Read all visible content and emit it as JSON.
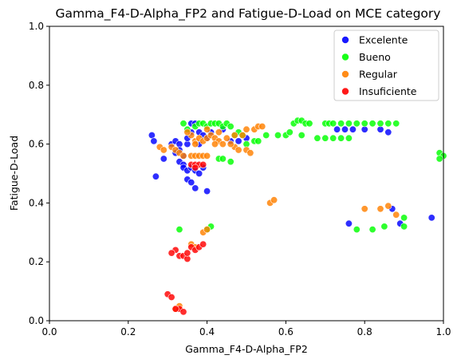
{
  "chart_data": {
    "type": "scatter",
    "title": "Gamma_F4-D-Alpha_FP2 and Fatigue-D-Load on MCE category",
    "xlabel": "Gamma_F4-D-Alpha_FP2",
    "ylabel": "Fatigue-D-Load",
    "xlim": [
      0,
      1
    ],
    "ylim": [
      0,
      1
    ],
    "xticks": [
      "0.0",
      "0.2",
      "0.4",
      "0.6",
      "0.8",
      "1.0"
    ],
    "yticks": [
      "0.0",
      "0.2",
      "0.4",
      "0.6",
      "0.8",
      "1.0"
    ],
    "grid": false,
    "legend_position": "top-right",
    "series": [
      {
        "name": "Excelente",
        "color": "#0000ff",
        "points": [
          [
            0.26,
            0.63
          ],
          [
            0.265,
            0.61
          ],
          [
            0.27,
            0.49
          ],
          [
            0.29,
            0.55
          ],
          [
            0.31,
            0.6
          ],
          [
            0.32,
            0.61
          ],
          [
            0.33,
            0.6
          ],
          [
            0.33,
            0.58
          ],
          [
            0.34,
            0.56
          ],
          [
            0.35,
            0.6
          ],
          [
            0.32,
            0.57
          ],
          [
            0.33,
            0.54
          ],
          [
            0.34,
            0.53
          ],
          [
            0.34,
            0.52
          ],
          [
            0.35,
            0.51
          ],
          [
            0.36,
            0.52
          ],
          [
            0.37,
            0.51
          ],
          [
            0.38,
            0.5
          ],
          [
            0.35,
            0.48
          ],
          [
            0.36,
            0.47
          ],
          [
            0.37,
            0.45
          ],
          [
            0.4,
            0.44
          ],
          [
            0.36,
            0.67
          ],
          [
            0.37,
            0.67
          ],
          [
            0.38,
            0.64
          ],
          [
            0.39,
            0.63
          ],
          [
            0.4,
            0.62
          ],
          [
            0.41,
            0.64
          ],
          [
            0.44,
            0.65
          ],
          [
            0.46,
            0.61
          ],
          [
            0.48,
            0.61
          ],
          [
            0.5,
            0.62
          ],
          [
            0.73,
            0.65
          ],
          [
            0.75,
            0.65
          ],
          [
            0.77,
            0.65
          ],
          [
            0.8,
            0.65
          ],
          [
            0.84,
            0.65
          ],
          [
            0.86,
            0.64
          ],
          [
            0.87,
            0.38
          ],
          [
            0.89,
            0.33
          ],
          [
            0.97,
            0.35
          ],
          [
            0.76,
            0.33
          ],
          [
            0.38,
            0.6
          ],
          [
            0.35,
            0.62
          ],
          [
            0.36,
            0.64
          ],
          [
            0.39,
            0.52
          ]
        ]
      },
      {
        "name": "Bueno",
        "color": "#00ff00",
        "points": [
          [
            0.34,
            0.67
          ],
          [
            0.35,
            0.65
          ],
          [
            0.37,
            0.66
          ],
          [
            0.38,
            0.67
          ],
          [
            0.39,
            0.67
          ],
          [
            0.4,
            0.66
          ],
          [
            0.41,
            0.67
          ],
          [
            0.42,
            0.67
          ],
          [
            0.43,
            0.67
          ],
          [
            0.44,
            0.66
          ],
          [
            0.45,
            0.67
          ],
          [
            0.46,
            0.66
          ],
          [
            0.47,
            0.63
          ],
          [
            0.48,
            0.64
          ],
          [
            0.49,
            0.63
          ],
          [
            0.5,
            0.6
          ],
          [
            0.52,
            0.61
          ],
          [
            0.53,
            0.61
          ],
          [
            0.55,
            0.63
          ],
          [
            0.58,
            0.63
          ],
          [
            0.6,
            0.63
          ],
          [
            0.61,
            0.64
          ],
          [
            0.62,
            0.67
          ],
          [
            0.63,
            0.68
          ],
          [
            0.64,
            0.68
          ],
          [
            0.65,
            0.67
          ],
          [
            0.66,
            0.67
          ],
          [
            0.68,
            0.62
          ],
          [
            0.7,
            0.67
          ],
          [
            0.71,
            0.67
          ],
          [
            0.72,
            0.67
          ],
          [
            0.74,
            0.67
          ],
          [
            0.76,
            0.67
          ],
          [
            0.78,
            0.67
          ],
          [
            0.8,
            0.67
          ],
          [
            0.82,
            0.67
          ],
          [
            0.84,
            0.67
          ],
          [
            0.86,
            0.67
          ],
          [
            0.88,
            0.67
          ],
          [
            0.7,
            0.62
          ],
          [
            0.72,
            0.62
          ],
          [
            0.74,
            0.62
          ],
          [
            0.76,
            0.62
          ],
          [
            0.43,
            0.55
          ],
          [
            0.44,
            0.55
          ],
          [
            0.46,
            0.54
          ],
          [
            0.41,
            0.32
          ],
          [
            0.4,
            0.31
          ],
          [
            0.33,
            0.31
          ],
          [
            0.78,
            0.31
          ],
          [
            0.82,
            0.31
          ],
          [
            0.85,
            0.32
          ],
          [
            0.9,
            0.35
          ],
          [
            0.9,
            0.32
          ],
          [
            0.99,
            0.57
          ],
          [
            1.0,
            0.56
          ],
          [
            0.99,
            0.55
          ],
          [
            0.64,
            0.63
          ]
        ]
      },
      {
        "name": "Regular",
        "color": "#ff8000",
        "points": [
          [
            0.28,
            0.59
          ],
          [
            0.29,
            0.58
          ],
          [
            0.31,
            0.59
          ],
          [
            0.32,
            0.58
          ],
          [
            0.33,
            0.57
          ],
          [
            0.34,
            0.56
          ],
          [
            0.36,
            0.56
          ],
          [
            0.37,
            0.56
          ],
          [
            0.38,
            0.56
          ],
          [
            0.39,
            0.56
          ],
          [
            0.4,
            0.56
          ],
          [
            0.37,
            0.61
          ],
          [
            0.38,
            0.62
          ],
          [
            0.39,
            0.61
          ],
          [
            0.4,
            0.62
          ],
          [
            0.41,
            0.63
          ],
          [
            0.42,
            0.62
          ],
          [
            0.43,
            0.61
          ],
          [
            0.45,
            0.62
          ],
          [
            0.47,
            0.63
          ],
          [
            0.49,
            0.63
          ],
          [
            0.5,
            0.65
          ],
          [
            0.52,
            0.65
          ],
          [
            0.53,
            0.66
          ],
          [
            0.54,
            0.66
          ],
          [
            0.47,
            0.59
          ],
          [
            0.48,
            0.58
          ],
          [
            0.5,
            0.58
          ],
          [
            0.51,
            0.57
          ],
          [
            0.36,
            0.63
          ],
          [
            0.4,
            0.65
          ],
          [
            0.42,
            0.6
          ],
          [
            0.44,
            0.6
          ],
          [
            0.46,
            0.6
          ],
          [
            0.56,
            0.4
          ],
          [
            0.57,
            0.41
          ],
          [
            0.8,
            0.38
          ],
          [
            0.84,
            0.38
          ],
          [
            0.86,
            0.39
          ],
          [
            0.88,
            0.36
          ],
          [
            0.39,
            0.3
          ],
          [
            0.4,
            0.31
          ],
          [
            0.36,
            0.26
          ],
          [
            0.37,
            0.25
          ],
          [
            0.32,
            0.04
          ],
          [
            0.33,
            0.05
          ],
          [
            0.37,
            0.6
          ],
          [
            0.35,
            0.64
          ],
          [
            0.43,
            0.64
          ]
        ]
      },
      {
        "name": "Insuficiente",
        "color": "#ff0000",
        "points": [
          [
            0.36,
            0.53
          ],
          [
            0.37,
            0.53
          ],
          [
            0.38,
            0.53
          ],
          [
            0.39,
            0.53
          ],
          [
            0.37,
            0.52
          ],
          [
            0.32,
            0.24
          ],
          [
            0.33,
            0.22
          ],
          [
            0.34,
            0.22
          ],
          [
            0.35,
            0.21
          ],
          [
            0.36,
            0.25
          ],
          [
            0.37,
            0.24
          ],
          [
            0.38,
            0.25
          ],
          [
            0.39,
            0.26
          ],
          [
            0.31,
            0.23
          ],
          [
            0.3,
            0.09
          ],
          [
            0.31,
            0.08
          ],
          [
            0.33,
            0.04
          ],
          [
            0.34,
            0.03
          ],
          [
            0.32,
            0.04
          ],
          [
            0.35,
            0.23
          ]
        ]
      }
    ]
  }
}
